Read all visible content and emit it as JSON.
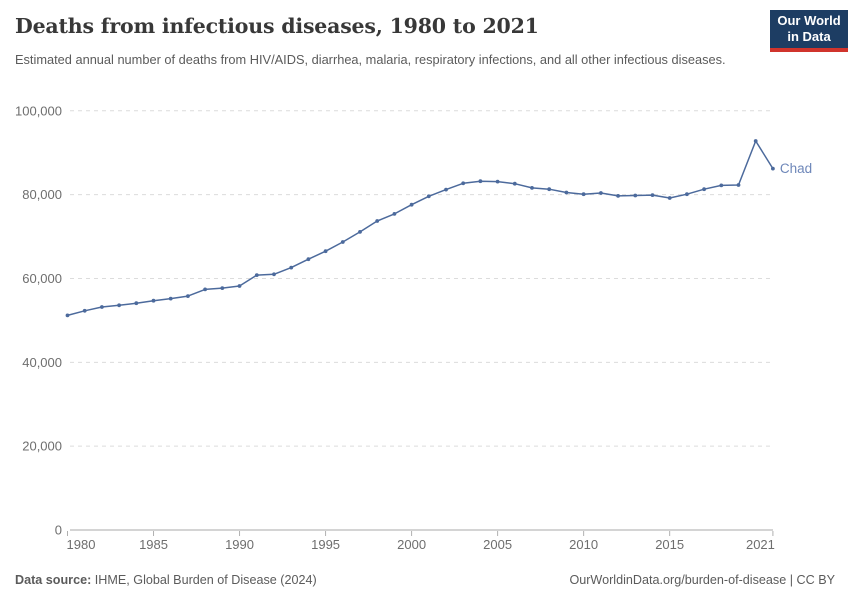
{
  "header": {
    "title": "Deaths from infectious diseases, 1980 to 2021",
    "subtitle": "Estimated annual number of deaths from HIV/AIDS, diarrhea, malaria, respiratory infections, and all other infectious diseases.",
    "logo": {
      "line1": "Our World",
      "line2": "in Data",
      "background_color": "#1d3d63",
      "accent_color": "#d0342c"
    }
  },
  "chart_data": {
    "type": "line",
    "title": "Deaths from infectious diseases, 1980 to 2021",
    "xlabel": "",
    "ylabel": "",
    "xlim": [
      1980,
      2021
    ],
    "ylim": [
      0,
      100000
    ],
    "x_ticks": [
      1980,
      1985,
      1990,
      1995,
      2000,
      2005,
      2010,
      2015,
      2021
    ],
    "y_ticks": [
      0,
      20000,
      40000,
      60000,
      80000,
      100000
    ],
    "grid": "horizontal-dashed",
    "legend_position": "end-of-line-label",
    "series": [
      {
        "name": "Chad",
        "color": "#4C6A9C",
        "label_color": "#6E87B9",
        "years": [
          1980,
          1981,
          1982,
          1983,
          1984,
          1985,
          1986,
          1987,
          1988,
          1989,
          1990,
          1991,
          1992,
          1993,
          1994,
          1995,
          1996,
          1997,
          1998,
          1999,
          2000,
          2001,
          2002,
          2003,
          2004,
          2005,
          2006,
          2007,
          2008,
          2009,
          2010,
          2011,
          2012,
          2013,
          2014,
          2015,
          2016,
          2017,
          2018,
          2019,
          2020,
          2021
        ],
        "values": [
          51200,
          52300,
          53200,
          53600,
          54100,
          54700,
          55200,
          55800,
          57400,
          57700,
          58200,
          60800,
          61000,
          62600,
          64600,
          66500,
          68700,
          71100,
          73700,
          75400,
          77600,
          79600,
          81200,
          82700,
          83200,
          83100,
          82600,
          81600,
          81300,
          80500,
          80100,
          80400,
          79700,
          79800,
          79900,
          79200,
          80100,
          81300,
          82200,
          82300,
          92800,
          86200
        ]
      }
    ],
    "colors": {
      "gridline": "#dcdcdc",
      "axis_line": "#a8a8a8",
      "tick_mark": "#b0b0b0",
      "axis_label": "#6e6e6e"
    }
  },
  "footer": {
    "source_label": "Data source:",
    "source_text": " IHME, Global Burden of Disease (2024)",
    "link_text": "OurWorldinData.org/burden-of-disease",
    "separator": " | ",
    "license_text": "CC BY"
  }
}
